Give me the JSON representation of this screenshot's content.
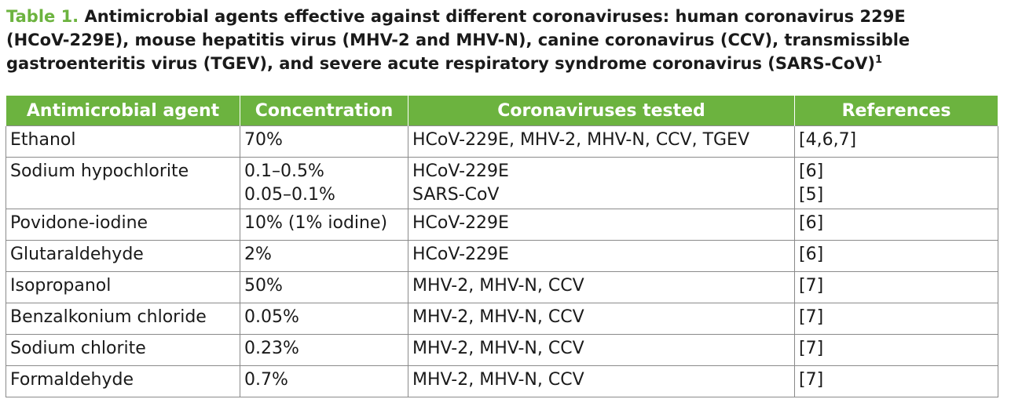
{
  "caption": {
    "label": "Table 1.",
    "line1": "Antimicrobial agents effective against different coronaviruses: human coronavirus 229E",
    "line2": "(HCoV-229E), mouse hepatitis virus (MHV-2 and MHV-N), canine coronavirus (CCV), transmissible",
    "line3": "gastroenteritis virus (TGEV), and severe acute respiratory syndrome coronavirus (SARS-CoV)",
    "footnote": "1"
  },
  "table": {
    "headers": [
      "Antimicrobial agent",
      "Concentration",
      "Coronaviruses tested",
      "References"
    ],
    "rows": [
      {
        "agent": "Ethanol",
        "concentration": [
          "70%"
        ],
        "viruses": [
          "HCoV-229E, MHV-2, MHV-N, CCV, TGEV"
        ],
        "references": [
          "[4,6,7]"
        ]
      },
      {
        "agent": "Sodium hypochlorite",
        "concentration": [
          "0.1–0.5%",
          "0.05–0.1%"
        ],
        "viruses": [
          "HCoV-229E",
          "SARS-CoV"
        ],
        "references": [
          "[6]",
          "[5]"
        ]
      },
      {
        "agent": "Povidone-iodine",
        "concentration": [
          "10% (1% iodine)"
        ],
        "viruses": [
          "HCoV-229E"
        ],
        "references": [
          "[6]"
        ]
      },
      {
        "agent": "Glutaraldehyde",
        "concentration": [
          "2%"
        ],
        "viruses": [
          "HCoV-229E"
        ],
        "references": [
          "[6]"
        ]
      },
      {
        "agent": "Isopropanol",
        "concentration": [
          "50%"
        ],
        "viruses": [
          "MHV-2, MHV-N, CCV"
        ],
        "references": [
          "[7]"
        ]
      },
      {
        "agent": "Benzalkonium chloride",
        "concentration": [
          "0.05%"
        ],
        "viruses": [
          "MHV-2, MHV-N, CCV"
        ],
        "references": [
          "[7]"
        ]
      },
      {
        "agent": "Sodium chlorite",
        "concentration": [
          "0.23%"
        ],
        "viruses": [
          "MHV-2, MHV-N, CCV"
        ],
        "references": [
          "[7]"
        ]
      },
      {
        "agent": "Formaldehyde",
        "concentration": [
          "0.7%"
        ],
        "viruses": [
          "MHV-2, MHV-N, CCV"
        ],
        "references": [
          "[7]"
        ]
      }
    ]
  },
  "colors": {
    "accent": "#6cb33f",
    "header_text": "#ffffff",
    "border": "#8a8a8a"
  }
}
